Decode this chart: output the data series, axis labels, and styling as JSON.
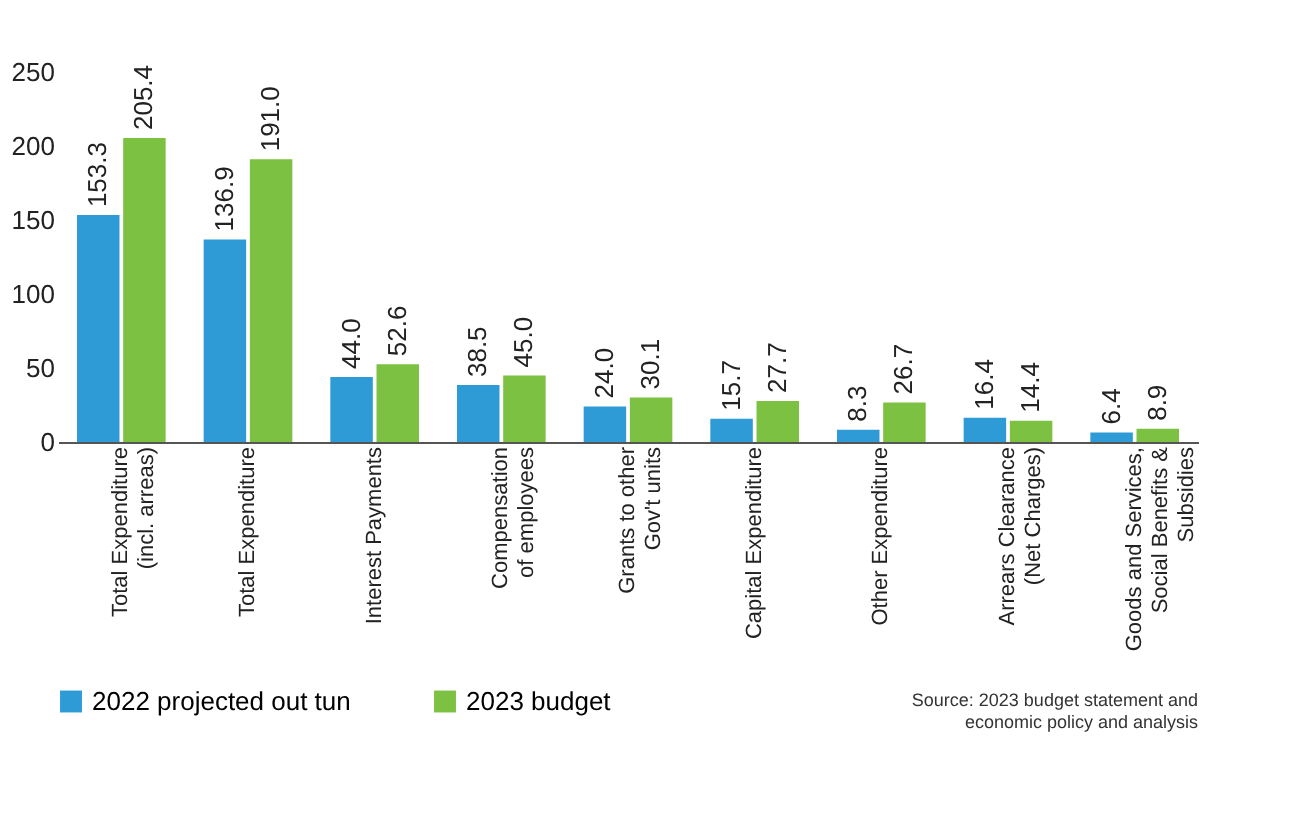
{
  "chart_data": {
    "type": "bar",
    "categories": [
      "Total Expenditure\n(incl. arreas)",
      "Total Expenditure",
      "Interest Payments",
      "Compensation\nof employees",
      "Grants to other\nGov't units",
      "Capital Expenditure",
      "Other Expenditure",
      "Arrears Clearance\n(Net Charges)",
      "Goods and Services,\nSocial Benefits &\nSubsidies"
    ],
    "series": [
      {
        "name": "2022 projected out tun",
        "color": "#2e9bd6",
        "values": [
          153.3,
          136.9,
          44,
          38.5,
          24,
          15.7,
          8.3,
          16.4,
          6.4
        ],
        "value_labels": [
          "153.3",
          "136.9",
          "44.0",
          "38.5",
          "24.0",
          "15.7",
          "8.3",
          "16.4",
          "6.4"
        ]
      },
      {
        "name": "2023 budget",
        "color": "#7cc142",
        "values": [
          205.4,
          191,
          52.6,
          45,
          30.1,
          27.7,
          26.7,
          14.4,
          8.9
        ],
        "value_labels": [
          "205.4",
          "191.0",
          "52.6",
          "45.0",
          "30.1",
          "27.7",
          "26.7",
          "14.4",
          "8.9"
        ]
      }
    ],
    "ylim": [
      0,
      250
    ],
    "yticks": [
      0,
      50,
      100,
      150,
      200,
      250
    ],
    "grid": false,
    "legend": "bottom left",
    "annotations": [
      "Source: 2023 budget statement and\neconomic policy and analysis"
    ]
  }
}
